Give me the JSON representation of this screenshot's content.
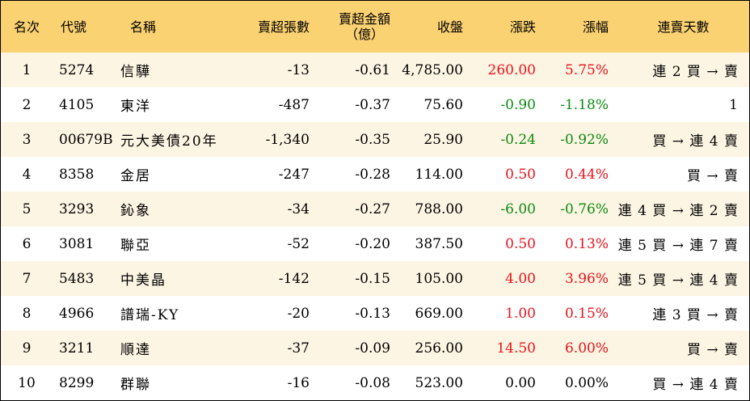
{
  "headers": {
    "rank": "名次",
    "code": "代號",
    "name": "名稱",
    "net_sell_lots": "賣超張數",
    "net_sell_amount_line1": "賣超金額",
    "net_sell_amount_line2": "（億）",
    "close": "收盤",
    "change": "漲跌",
    "change_pct": "漲幅",
    "streak": "連賣天數"
  },
  "colors": {
    "header_bg": "#fbd272",
    "odd_row_bg": "#fdf5e3",
    "even_row_bg": "#ffffff",
    "up": "#e8121b",
    "down": "#0a8a11",
    "flat": "#000000"
  },
  "rows": [
    {
      "rank": "1",
      "code": "5274",
      "name": "信驊",
      "lots": "-13",
      "amount": "-0.61",
      "close": "4,785.00",
      "change": "260.00",
      "pct": "5.75%",
      "streak": "連 2 買 → 賣",
      "dir": "up"
    },
    {
      "rank": "2",
      "code": "4105",
      "name": "東洋",
      "lots": "-487",
      "amount": "-0.37",
      "close": "75.60",
      "change": "-0.90",
      "pct": "-1.18%",
      "streak": "1",
      "dir": "down"
    },
    {
      "rank": "3",
      "code": "00679B",
      "name": "元大美債20年",
      "lots": "-1,340",
      "amount": "-0.35",
      "close": "25.90",
      "change": "-0.24",
      "pct": "-0.92%",
      "streak": "買 → 連 4 賣",
      "dir": "down"
    },
    {
      "rank": "4",
      "code": "8358",
      "name": "金居",
      "lots": "-247",
      "amount": "-0.28",
      "close": "114.00",
      "change": "0.50",
      "pct": "0.44%",
      "streak": "買 → 賣",
      "dir": "up"
    },
    {
      "rank": "5",
      "code": "3293",
      "name": "鈊象",
      "lots": "-34",
      "amount": "-0.27",
      "close": "788.00",
      "change": "-6.00",
      "pct": "-0.76%",
      "streak": "連 4 買 → 連 2 賣",
      "dir": "down"
    },
    {
      "rank": "6",
      "code": "3081",
      "name": "聯亞",
      "lots": "-52",
      "amount": "-0.20",
      "close": "387.50",
      "change": "0.50",
      "pct": "0.13%",
      "streak": "連 5 買 → 連 7 賣",
      "dir": "up"
    },
    {
      "rank": "7",
      "code": "5483",
      "name": "中美晶",
      "lots": "-142",
      "amount": "-0.15",
      "close": "105.00",
      "change": "4.00",
      "pct": "3.96%",
      "streak": "連 5 買 → 連 4 賣",
      "dir": "up"
    },
    {
      "rank": "8",
      "code": "4966",
      "name": "譜瑞-KY",
      "lots": "-20",
      "amount": "-0.13",
      "close": "669.00",
      "change": "1.00",
      "pct": "0.15%",
      "streak": "連 3 買 → 賣",
      "dir": "up"
    },
    {
      "rank": "9",
      "code": "3211",
      "name": "順達",
      "lots": "-37",
      "amount": "-0.09",
      "close": "256.00",
      "change": "14.50",
      "pct": "6.00%",
      "streak": "買 → 賣",
      "dir": "up"
    },
    {
      "rank": "10",
      "code": "8299",
      "name": "群聯",
      "lots": "-16",
      "amount": "-0.08",
      "close": "523.00",
      "change": "0.00",
      "pct": "0.00%",
      "streak": "買 → 連 4 賣",
      "dir": "flat"
    }
  ]
}
